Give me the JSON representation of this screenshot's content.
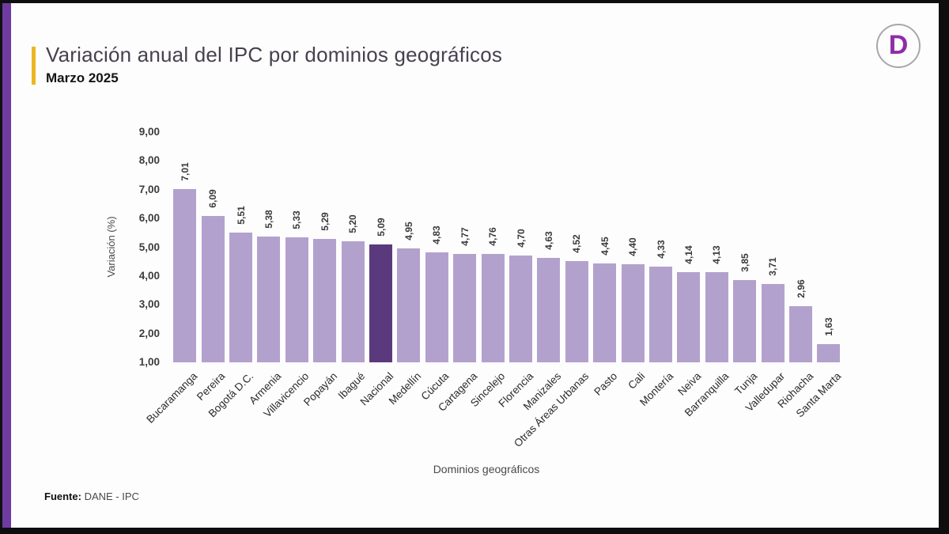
{
  "header": {
    "title": "Variación anual del IPC por dominios geográficos",
    "subtitle": "Marzo 2025",
    "logo_letter": "D"
  },
  "footer": {
    "source_label": "Fuente:",
    "source_value": "DANE - IPC"
  },
  "theme": {
    "accent_yellow": "#edb723",
    "left_strip_purple": "#6e3ca0",
    "logo_purple": "#8f2da8",
    "title_color": "#47414f"
  },
  "chart_data": {
    "type": "bar",
    "title": "Variación anual del IPC por dominios geográficos — Marzo 2025",
    "xlabel": "Dominios geográficos",
    "ylabel": "Variación (%)",
    "ylim": [
      1,
      9
    ],
    "grid": false,
    "legend": false,
    "ytick_labels": [
      "9,00",
      "8,00",
      "7,00",
      "6,00",
      "5,00",
      "4,00",
      "3,00",
      "2,00",
      "1,00"
    ],
    "categories": [
      "Bucaramanga",
      "Pereira",
      "Bogotá D.C.",
      "Armenia",
      "Villavicencio",
      "Popayán",
      "Ibagué",
      "Nacional",
      "Medellín",
      "Cúcuta",
      "Cartagena",
      "Sincelejo",
      "Florencia",
      "Manizales",
      "Otras Áreas Urbanas",
      "Pasto",
      "Cali",
      "Montería",
      "Neiva",
      "Barranquilla",
      "Tunja",
      "Valledupar",
      "Riohacha",
      "Santa Marta"
    ],
    "values": [
      7.01,
      6.09,
      5.51,
      5.38,
      5.33,
      5.29,
      5.2,
      5.09,
      4.95,
      4.83,
      4.77,
      4.76,
      4.7,
      4.63,
      4.52,
      4.45,
      4.4,
      4.33,
      4.14,
      4.13,
      3.85,
      3.71,
      2.96,
      1.63
    ],
    "value_labels": [
      "7,01",
      "6,09",
      "5,51",
      "5,38",
      "5,33",
      "5,29",
      "5,20",
      "5,09",
      "4,95",
      "4,83",
      "4,77",
      "4,76",
      "4,70",
      "4,63",
      "4,52",
      "4,45",
      "4,40",
      "4,33",
      "4,14",
      "4,13",
      "3,85",
      "3,71",
      "2,96",
      "1,63"
    ],
    "highlight_category": "Nacional",
    "highlight_index": 7,
    "bar_color": "#b3a1cd",
    "highlight_color": "#5a3a7d"
  }
}
